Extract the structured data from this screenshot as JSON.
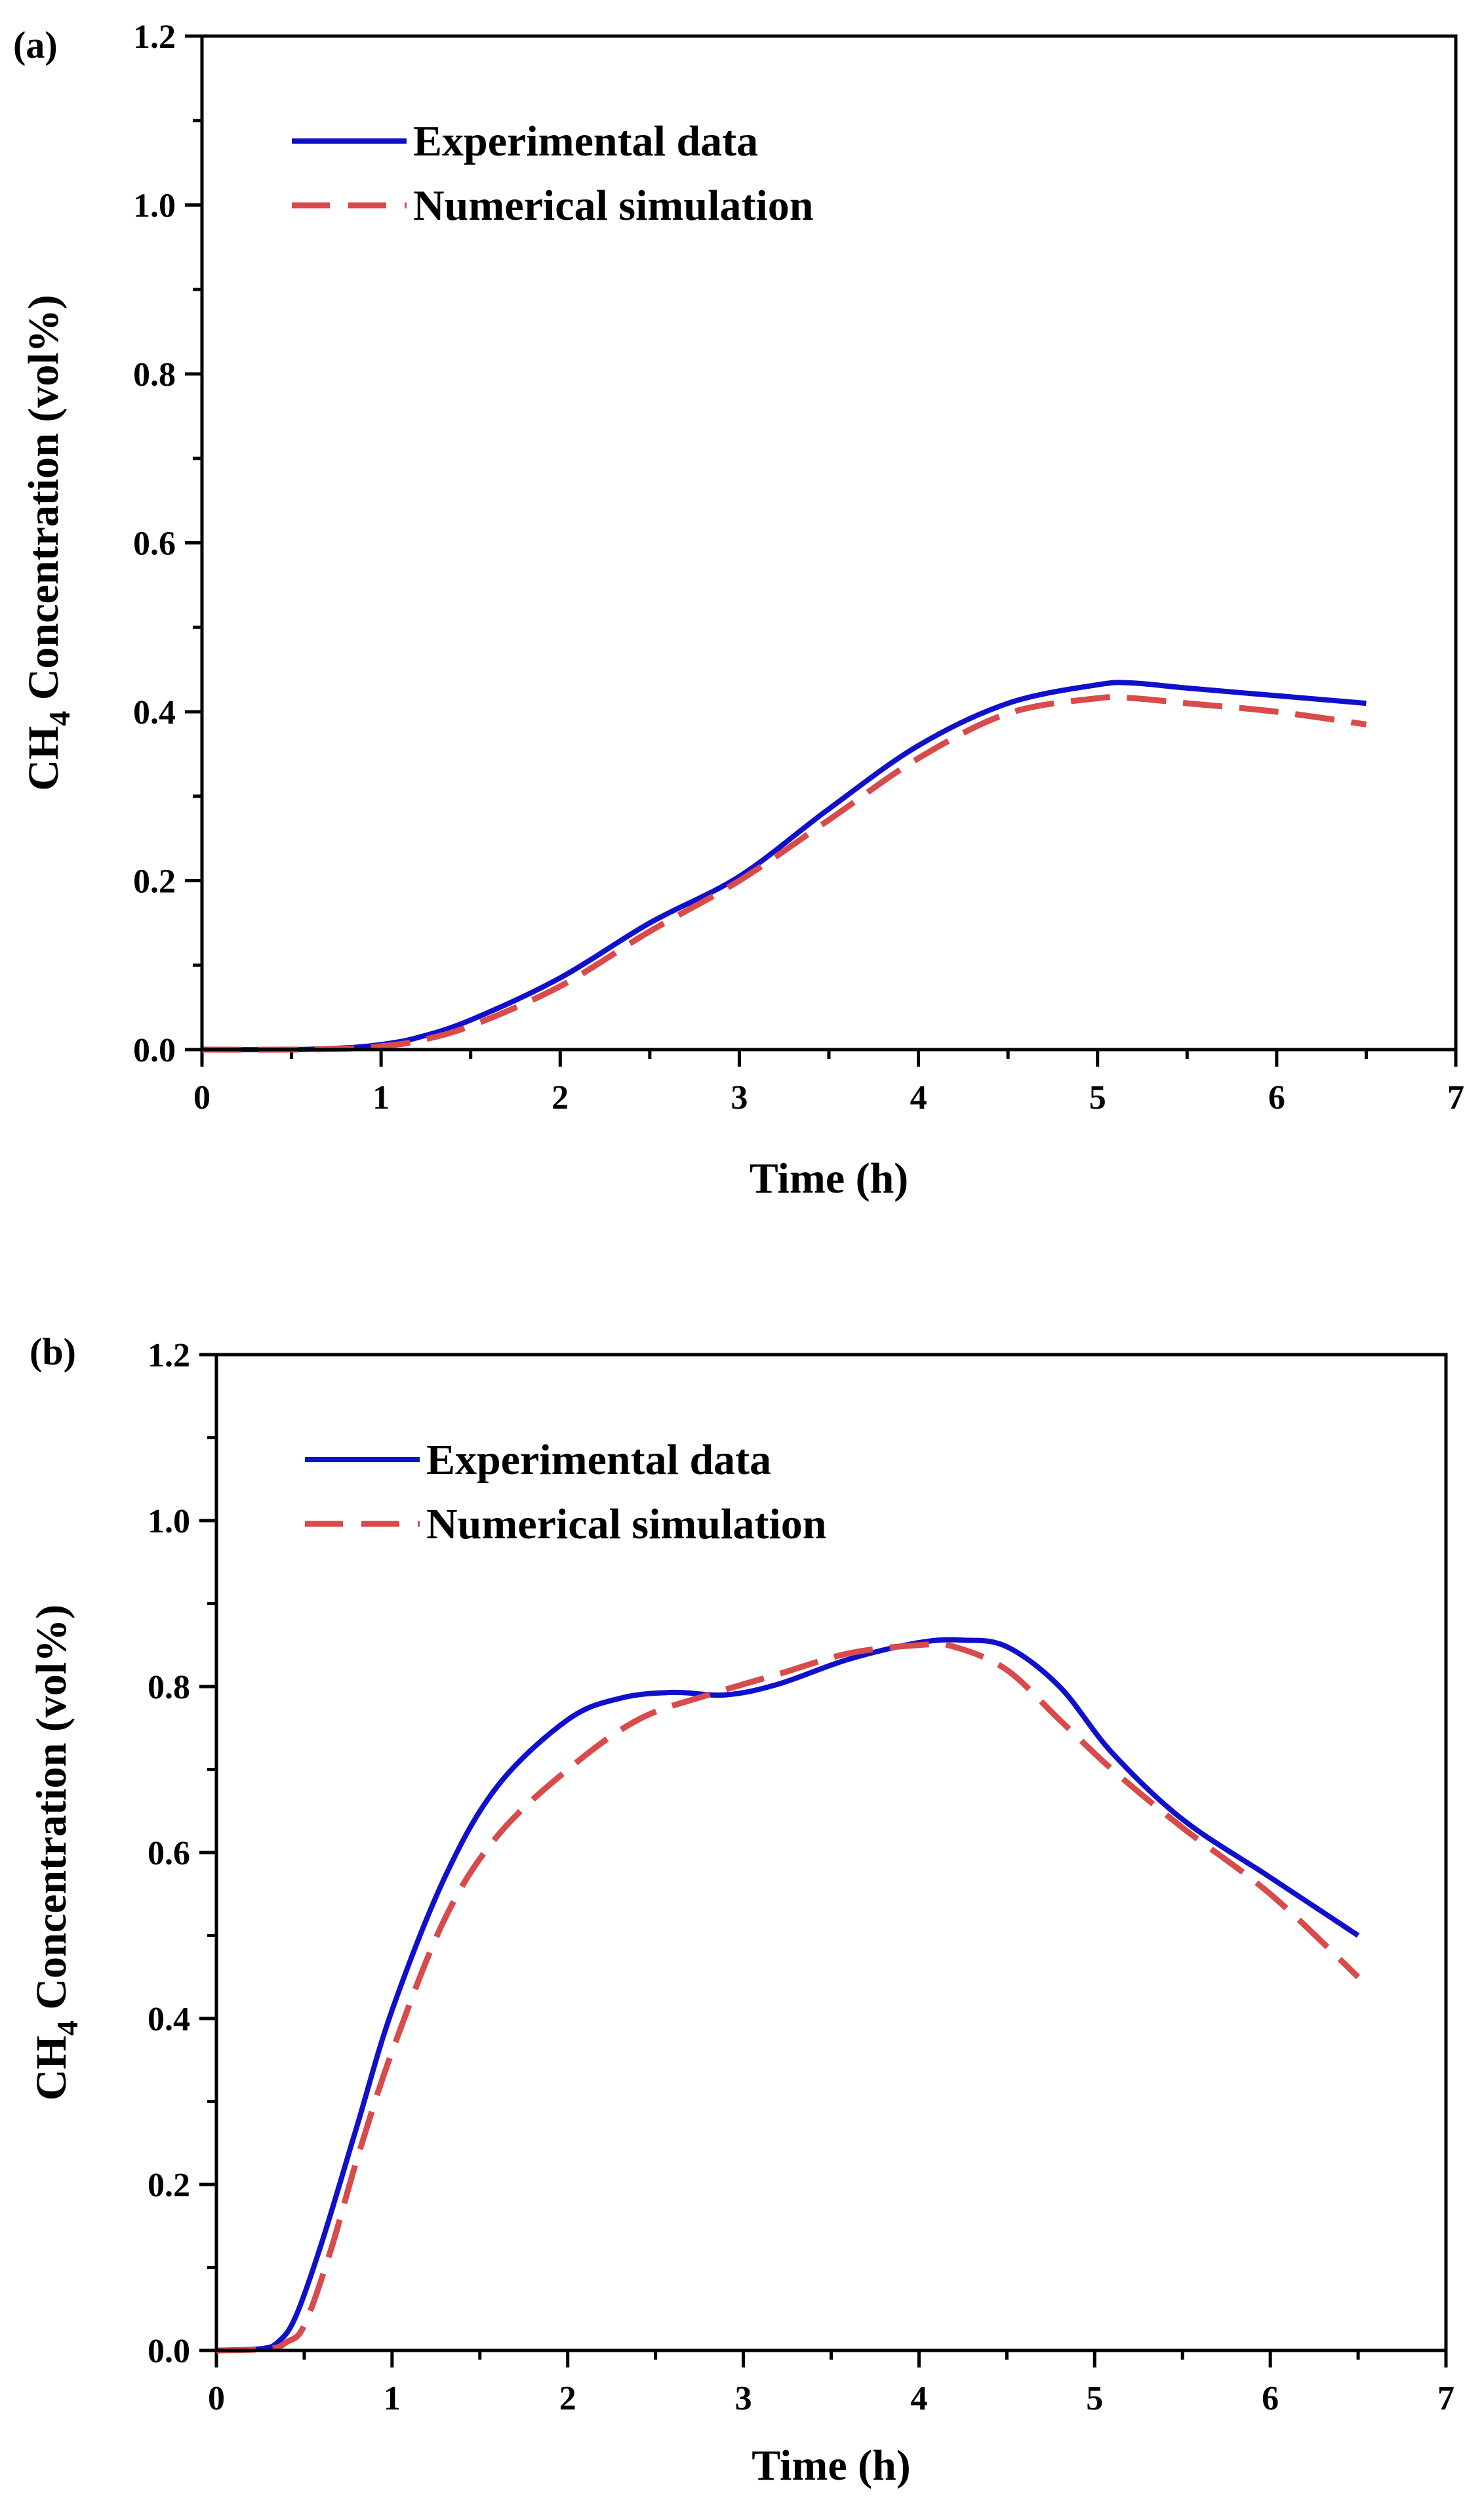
{
  "chart_data": [
    {
      "type": "line",
      "panel_label": "(a)",
      "xlabel": "Time (h)",
      "ylabel_main": "CH",
      "ylabel_sub": "4",
      "ylabel_rest": " Concentration (vol%)",
      "xlim": [
        0,
        7
      ],
      "ylim": [
        0,
        1.2
      ],
      "xticks": [
        0,
        1,
        2,
        3,
        4,
        5,
        6,
        7
      ],
      "xtick_labels": [
        "0",
        "1",
        "2",
        "3",
        "4",
        "5",
        "6",
        "7"
      ],
      "yticks": [
        0,
        0.2,
        0.4,
        0.6,
        0.8,
        1.0,
        1.2
      ],
      "ytick_labels": [
        "0.0",
        "0.2",
        "0.4",
        "0.6",
        "0.8",
        "1.0",
        "1.2"
      ],
      "legend_position": "top-left",
      "series": [
        {
          "name": "Experimental data",
          "style": "solid",
          "color": "#1010cc",
          "x": [
            0,
            0.5,
            0.8,
            1.0,
            1.2,
            1.5,
            2.0,
            2.5,
            3.0,
            3.5,
            4.0,
            4.5,
            5.0,
            5.2,
            5.5,
            6.0,
            6.5
          ],
          "y": [
            0,
            0,
            0.002,
            0.006,
            0.014,
            0.035,
            0.085,
            0.15,
            0.205,
            0.285,
            0.36,
            0.41,
            0.432,
            0.434,
            0.428,
            0.419,
            0.41
          ]
        },
        {
          "name": "Numerical simulation",
          "style": "dashed",
          "color": "#d94a4a",
          "x": [
            0,
            0.5,
            0.8,
            1.0,
            1.2,
            1.5,
            2.0,
            2.5,
            3.0,
            3.5,
            4.0,
            4.5,
            5.0,
            5.2,
            5.5,
            6.0,
            6.5
          ],
          "y": [
            0,
            0,
            0.001,
            0.004,
            0.01,
            0.028,
            0.075,
            0.14,
            0.2,
            0.272,
            0.345,
            0.398,
            0.416,
            0.416,
            0.41,
            0.4,
            0.385
          ]
        }
      ]
    },
    {
      "type": "line",
      "panel_label": "(b)",
      "xlabel": "Time (h)",
      "ylabel_main": "CH",
      "ylabel_sub": "4",
      "ylabel_rest": " Concentration (vol%)",
      "xlim": [
        0,
        7
      ],
      "ylim": [
        0,
        1.2
      ],
      "xticks": [
        0,
        1,
        2,
        3,
        4,
        5,
        6,
        7
      ],
      "xtick_labels": [
        "0",
        "1",
        "2",
        "3",
        "4",
        "5",
        "6",
        "7"
      ],
      "yticks": [
        0,
        0.2,
        0.4,
        0.6,
        0.8,
        1.0,
        1.2
      ],
      "ytick_labels": [
        "0.0",
        "0.2",
        "0.4",
        "0.6",
        "0.8",
        "1.0",
        "1.2"
      ],
      "legend_position": "top-left",
      "series": [
        {
          "name": "Experimental data",
          "style": "solid",
          "color": "#1010cc",
          "x": [
            0,
            0.25,
            0.35,
            0.45,
            0.6,
            0.8,
            1.0,
            1.3,
            1.6,
            2.0,
            2.3,
            2.6,
            2.9,
            3.2,
            3.6,
            4.0,
            4.25,
            4.5,
            4.8,
            5.1,
            5.5,
            6.0,
            6.5
          ],
          "y": [
            0,
            0.002,
            0.01,
            0.04,
            0.13,
            0.27,
            0.41,
            0.57,
            0.68,
            0.76,
            0.786,
            0.793,
            0.79,
            0.803,
            0.833,
            0.853,
            0.856,
            0.848,
            0.8,
            0.72,
            0.64,
            0.57,
            0.5
          ]
        },
        {
          "name": "Numerical simulation",
          "style": "dashed",
          "color": "#d94a4a",
          "x": [
            0,
            0.3,
            0.4,
            0.5,
            0.65,
            0.8,
            1.0,
            1.3,
            1.6,
            2.0,
            2.4,
            2.8,
            3.2,
            3.6,
            4.0,
            4.2,
            4.5,
            4.8,
            5.1,
            5.5,
            6.0,
            6.5
          ],
          "y": [
            0,
            0.002,
            0.01,
            0.03,
            0.12,
            0.23,
            0.36,
            0.52,
            0.62,
            0.7,
            0.76,
            0.79,
            0.815,
            0.84,
            0.85,
            0.848,
            0.82,
            0.76,
            0.7,
            0.63,
            0.55,
            0.45
          ]
        }
      ]
    }
  ]
}
